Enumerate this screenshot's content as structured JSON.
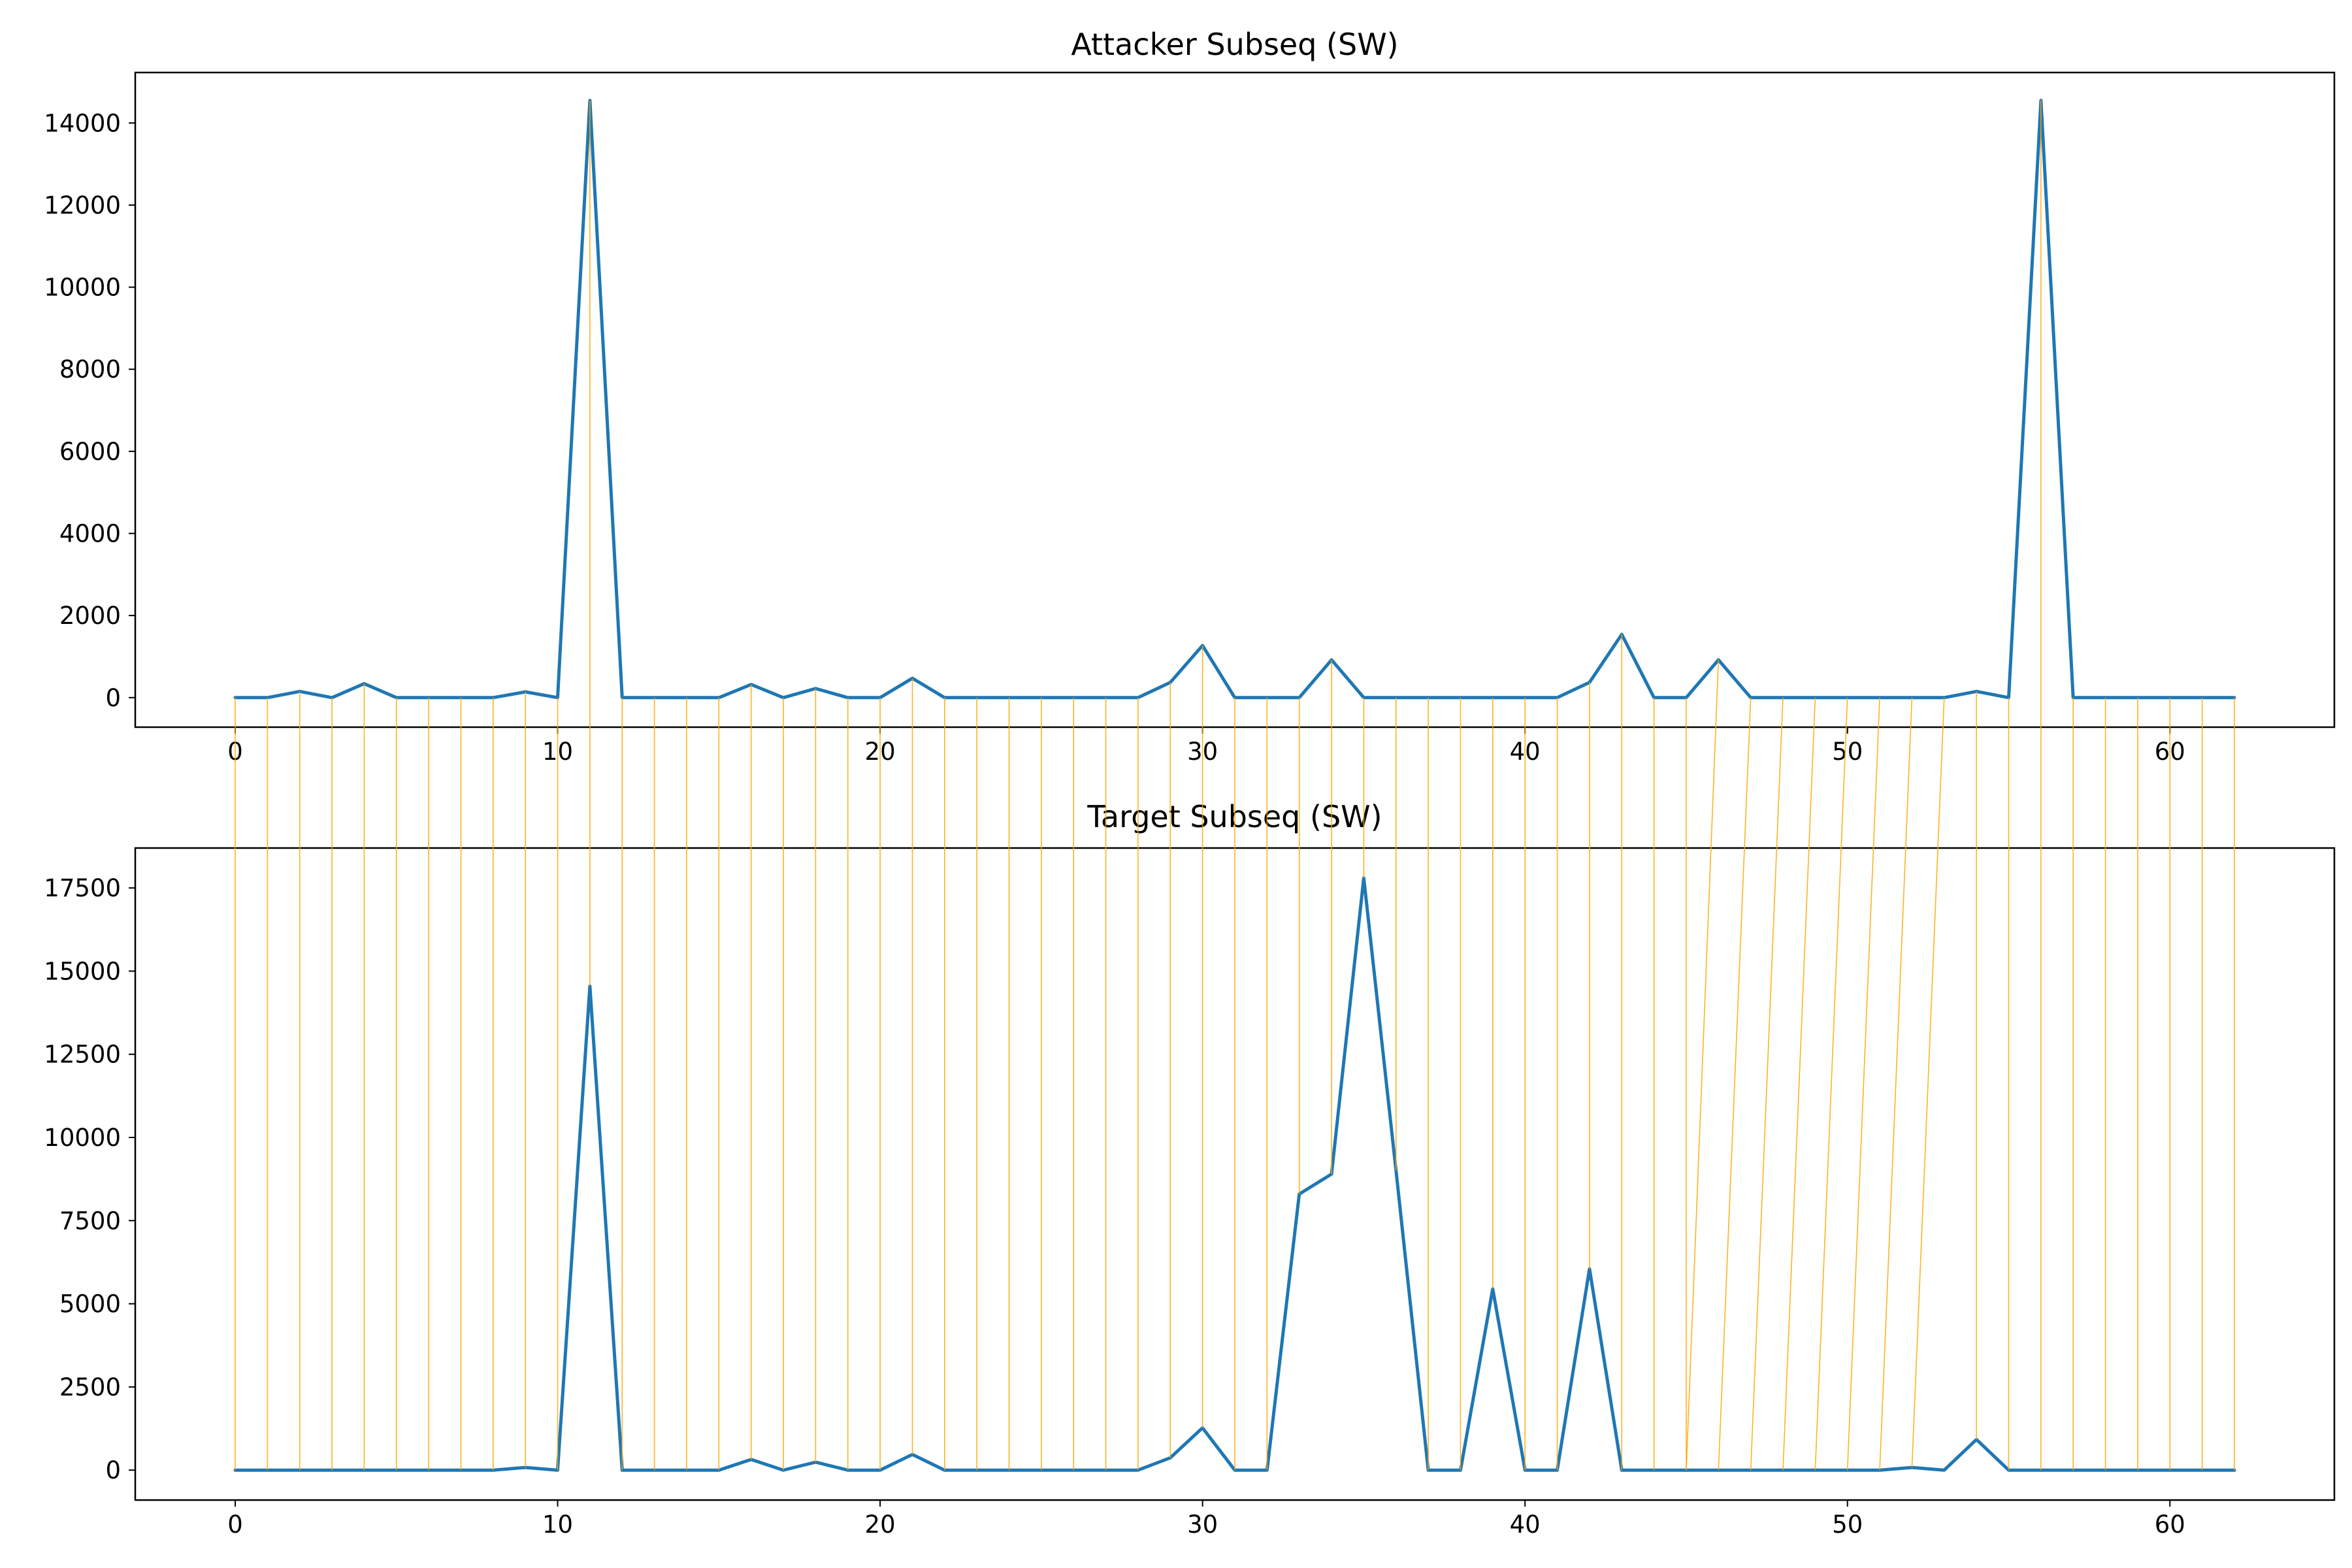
{
  "colors": {
    "series": "#1f77b4",
    "connector": "#ffa500",
    "axes": "#000000",
    "background": "#ffffff"
  },
  "chart_data": [
    {
      "type": "line",
      "title": "Attacker Subseq (SW)",
      "xlabel": "",
      "ylabel": "",
      "grid": false,
      "xlim": [
        -3.1,
        65.1
      ],
      "ylim": [
        -720,
        15230
      ],
      "x_ticks": [
        0,
        10,
        20,
        30,
        40,
        50,
        60
      ],
      "y_ticks": [
        0,
        2000,
        4000,
        6000,
        8000,
        10000,
        12000,
        14000
      ],
      "series": [
        {
          "x": [
            0,
            1,
            2,
            3,
            4,
            5,
            6,
            7,
            8,
            9,
            10,
            11,
            12,
            13,
            14,
            15,
            16,
            17,
            18,
            19,
            20,
            21,
            22,
            23,
            24,
            25,
            26,
            27,
            28,
            29,
            30,
            31,
            32,
            33,
            34,
            35,
            36,
            37,
            38,
            39,
            40,
            41,
            42,
            43,
            44,
            45,
            46,
            47,
            48,
            49,
            50,
            51,
            52,
            53,
            54,
            55,
            56,
            57,
            58,
            59,
            60,
            61,
            62
          ],
          "values": [
            0,
            0,
            150,
            0,
            340,
            0,
            0,
            0,
            0,
            140,
            0,
            14550,
            0,
            0,
            0,
            0,
            320,
            0,
            220,
            0,
            0,
            470,
            0,
            0,
            0,
            0,
            0,
            0,
            0,
            370,
            1270,
            0,
            0,
            0,
            920,
            0,
            0,
            0,
            0,
            0,
            0,
            0,
            370,
            1540,
            0,
            0,
            920,
            0,
            0,
            0,
            0,
            0,
            0,
            0,
            150,
            0,
            14550,
            0,
            0,
            0,
            0,
            0,
            0
          ]
        }
      ]
    },
    {
      "type": "line",
      "title": "Target Subseq (SW)",
      "xlabel": "",
      "ylabel": "",
      "grid": false,
      "xlim": [
        -3.1,
        65.1
      ],
      "ylim": [
        -900,
        18700
      ],
      "x_ticks": [
        0,
        10,
        20,
        30,
        40,
        50,
        60
      ],
      "y_ticks": [
        0,
        2500,
        5000,
        7500,
        10000,
        12500,
        15000,
        17500
      ],
      "series": [
        {
          "x": [
            0,
            1,
            2,
            3,
            4,
            5,
            6,
            7,
            8,
            9,
            10,
            11,
            12,
            13,
            14,
            15,
            16,
            17,
            18,
            19,
            20,
            21,
            22,
            23,
            24,
            25,
            26,
            27,
            28,
            29,
            30,
            31,
            32,
            33,
            34,
            35,
            36,
            37,
            38,
            39,
            40,
            41,
            42,
            43,
            44,
            45,
            46,
            47,
            48,
            49,
            50,
            51,
            52,
            53,
            54,
            55,
            56,
            57,
            58,
            59,
            60,
            61,
            62
          ],
          "values": [
            0,
            0,
            0,
            0,
            0,
            0,
            0,
            0,
            0,
            80,
            0,
            14550,
            0,
            0,
            0,
            0,
            320,
            0,
            240,
            0,
            0,
            470,
            0,
            0,
            0,
            0,
            0,
            0,
            0,
            370,
            1270,
            0,
            0,
            8300,
            8900,
            17800,
            9000,
            0,
            0,
            5450,
            0,
            0,
            6050,
            0,
            0,
            0,
            0,
            0,
            0,
            0,
            0,
            0,
            80,
            0,
            920,
            0,
            0,
            0,
            0,
            0,
            0,
            0,
            0
          ]
        }
      ]
    },
    {
      "type": "line",
      "title": "",
      "connector_pairs": [
        [
          0,
          0
        ],
        [
          1,
          1
        ],
        [
          2,
          2
        ],
        [
          3,
          3
        ],
        [
          4,
          4
        ],
        [
          5,
          5
        ],
        [
          6,
          6
        ],
        [
          7,
          7
        ],
        [
          8,
          8
        ],
        [
          9,
          9
        ],
        [
          10,
          10
        ],
        [
          11,
          11
        ],
        [
          12,
          12
        ],
        [
          13,
          13
        ],
        [
          14,
          14
        ],
        [
          15,
          15
        ],
        [
          16,
          16
        ],
        [
          17,
          17
        ],
        [
          18,
          18
        ],
        [
          19,
          19
        ],
        [
          20,
          20
        ],
        [
          21,
          21
        ],
        [
          22,
          22
        ],
        [
          23,
          23
        ],
        [
          24,
          24
        ],
        [
          25,
          25
        ],
        [
          26,
          26
        ],
        [
          27,
          27
        ],
        [
          28,
          28
        ],
        [
          29,
          29
        ],
        [
          30,
          30
        ],
        [
          31,
          31
        ],
        [
          32,
          32
        ],
        [
          33,
          33
        ],
        [
          34,
          34
        ],
        [
          35,
          35
        ],
        [
          36,
          36
        ],
        [
          37,
          37
        ],
        [
          38,
          38
        ],
        [
          39,
          39
        ],
        [
          40,
          40
        ],
        [
          41,
          41
        ],
        [
          42,
          42
        ],
        [
          43,
          43
        ],
        [
          44,
          44
        ],
        [
          45,
          45
        ],
        [
          46,
          45
        ],
        [
          47,
          46
        ],
        [
          48,
          47
        ],
        [
          49,
          48
        ],
        [
          50,
          49
        ],
        [
          51,
          50
        ],
        [
          52,
          51
        ],
        [
          53,
          52
        ],
        [
          54,
          54
        ],
        [
          55,
          55
        ],
        [
          56,
          56
        ],
        [
          57,
          57
        ],
        [
          58,
          58
        ],
        [
          59,
          59
        ],
        [
          60,
          60
        ],
        [
          61,
          61
        ],
        [
          62,
          62
        ]
      ]
    }
  ]
}
